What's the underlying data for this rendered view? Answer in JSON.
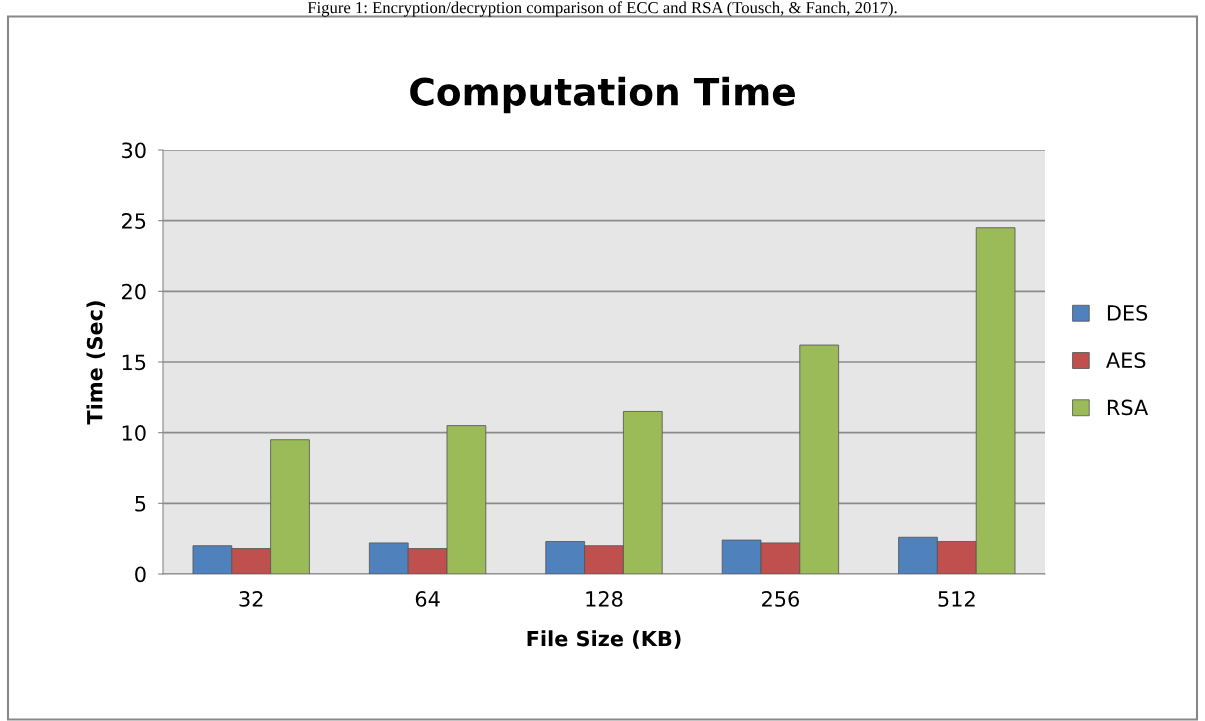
{
  "chart_data": {
    "type": "bar",
    "title": "Computation Time",
    "xlabel": "File Size (KB)",
    "ylabel": "Time (Sec)",
    "annotations": [
      "Figure 1: Encryption/decryption comparison of ECC and RSA (Tousch, & Fanch, 2017)."
    ],
    "categories": [
      "32",
      "64",
      "128",
      "256",
      "512"
    ],
    "series": [
      {
        "name": "DES",
        "color": "#4f81bd",
        "values": [
          2.0,
          2.2,
          2.3,
          2.4,
          2.6
        ]
      },
      {
        "name": "AES",
        "color": "#c0504d",
        "values": [
          1.8,
          1.8,
          2.0,
          2.2,
          2.3
        ]
      },
      {
        "name": "RSA",
        "color": "#9bbb59",
        "values": [
          9.5,
          10.5,
          11.5,
          16.2,
          24.5
        ]
      }
    ],
    "ylim": [
      0,
      30
    ],
    "yticks": [
      0,
      5,
      10,
      15,
      20,
      25,
      30
    ],
    "grid": "y",
    "legend": "right"
  }
}
